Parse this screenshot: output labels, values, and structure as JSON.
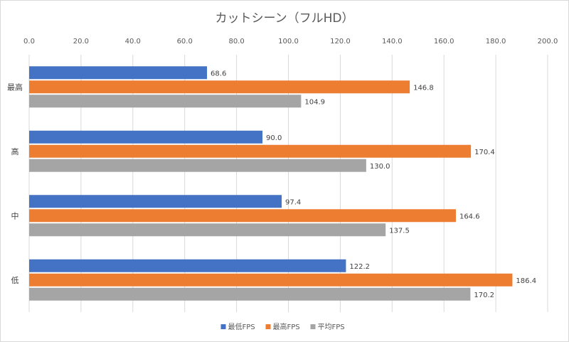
{
  "chart_data": {
    "type": "bar",
    "orientation": "horizontal",
    "title": "カットシーン（フルHD）",
    "categories": [
      "最高",
      "高",
      "中",
      "低"
    ],
    "series": [
      {
        "name": "最低FPS",
        "color": "#4472c4",
        "values": [
          68.6,
          90.0,
          97.4,
          122.2
        ],
        "labels": [
          "68.6",
          "90.0",
          "97.4",
          "122.2"
        ]
      },
      {
        "name": "最高FPS",
        "color": "#ed7d31",
        "values": [
          146.8,
          170.4,
          164.6,
          186.4
        ],
        "labels": [
          "146.8",
          "170.4",
          "164.6",
          "186.4"
        ]
      },
      {
        "name": "平均FPS",
        "color": "#a5a5a5",
        "values": [
          104.9,
          130.0,
          137.5,
          170.2
        ],
        "labels": [
          "104.9",
          "130.0",
          "137.5",
          "170.2"
        ]
      }
    ],
    "xlim": [
      0,
      200
    ],
    "xticks": [
      0,
      20,
      40,
      60,
      80,
      100,
      120,
      140,
      160,
      180,
      200
    ],
    "xtick_labels": [
      "0.0",
      "20.0",
      "40.0",
      "60.0",
      "80.0",
      "100.0",
      "120.0",
      "140.0",
      "160.0",
      "180.0",
      "200.0"
    ],
    "x_axis_position": "top",
    "grid": true,
    "legend_position": "bottom"
  }
}
